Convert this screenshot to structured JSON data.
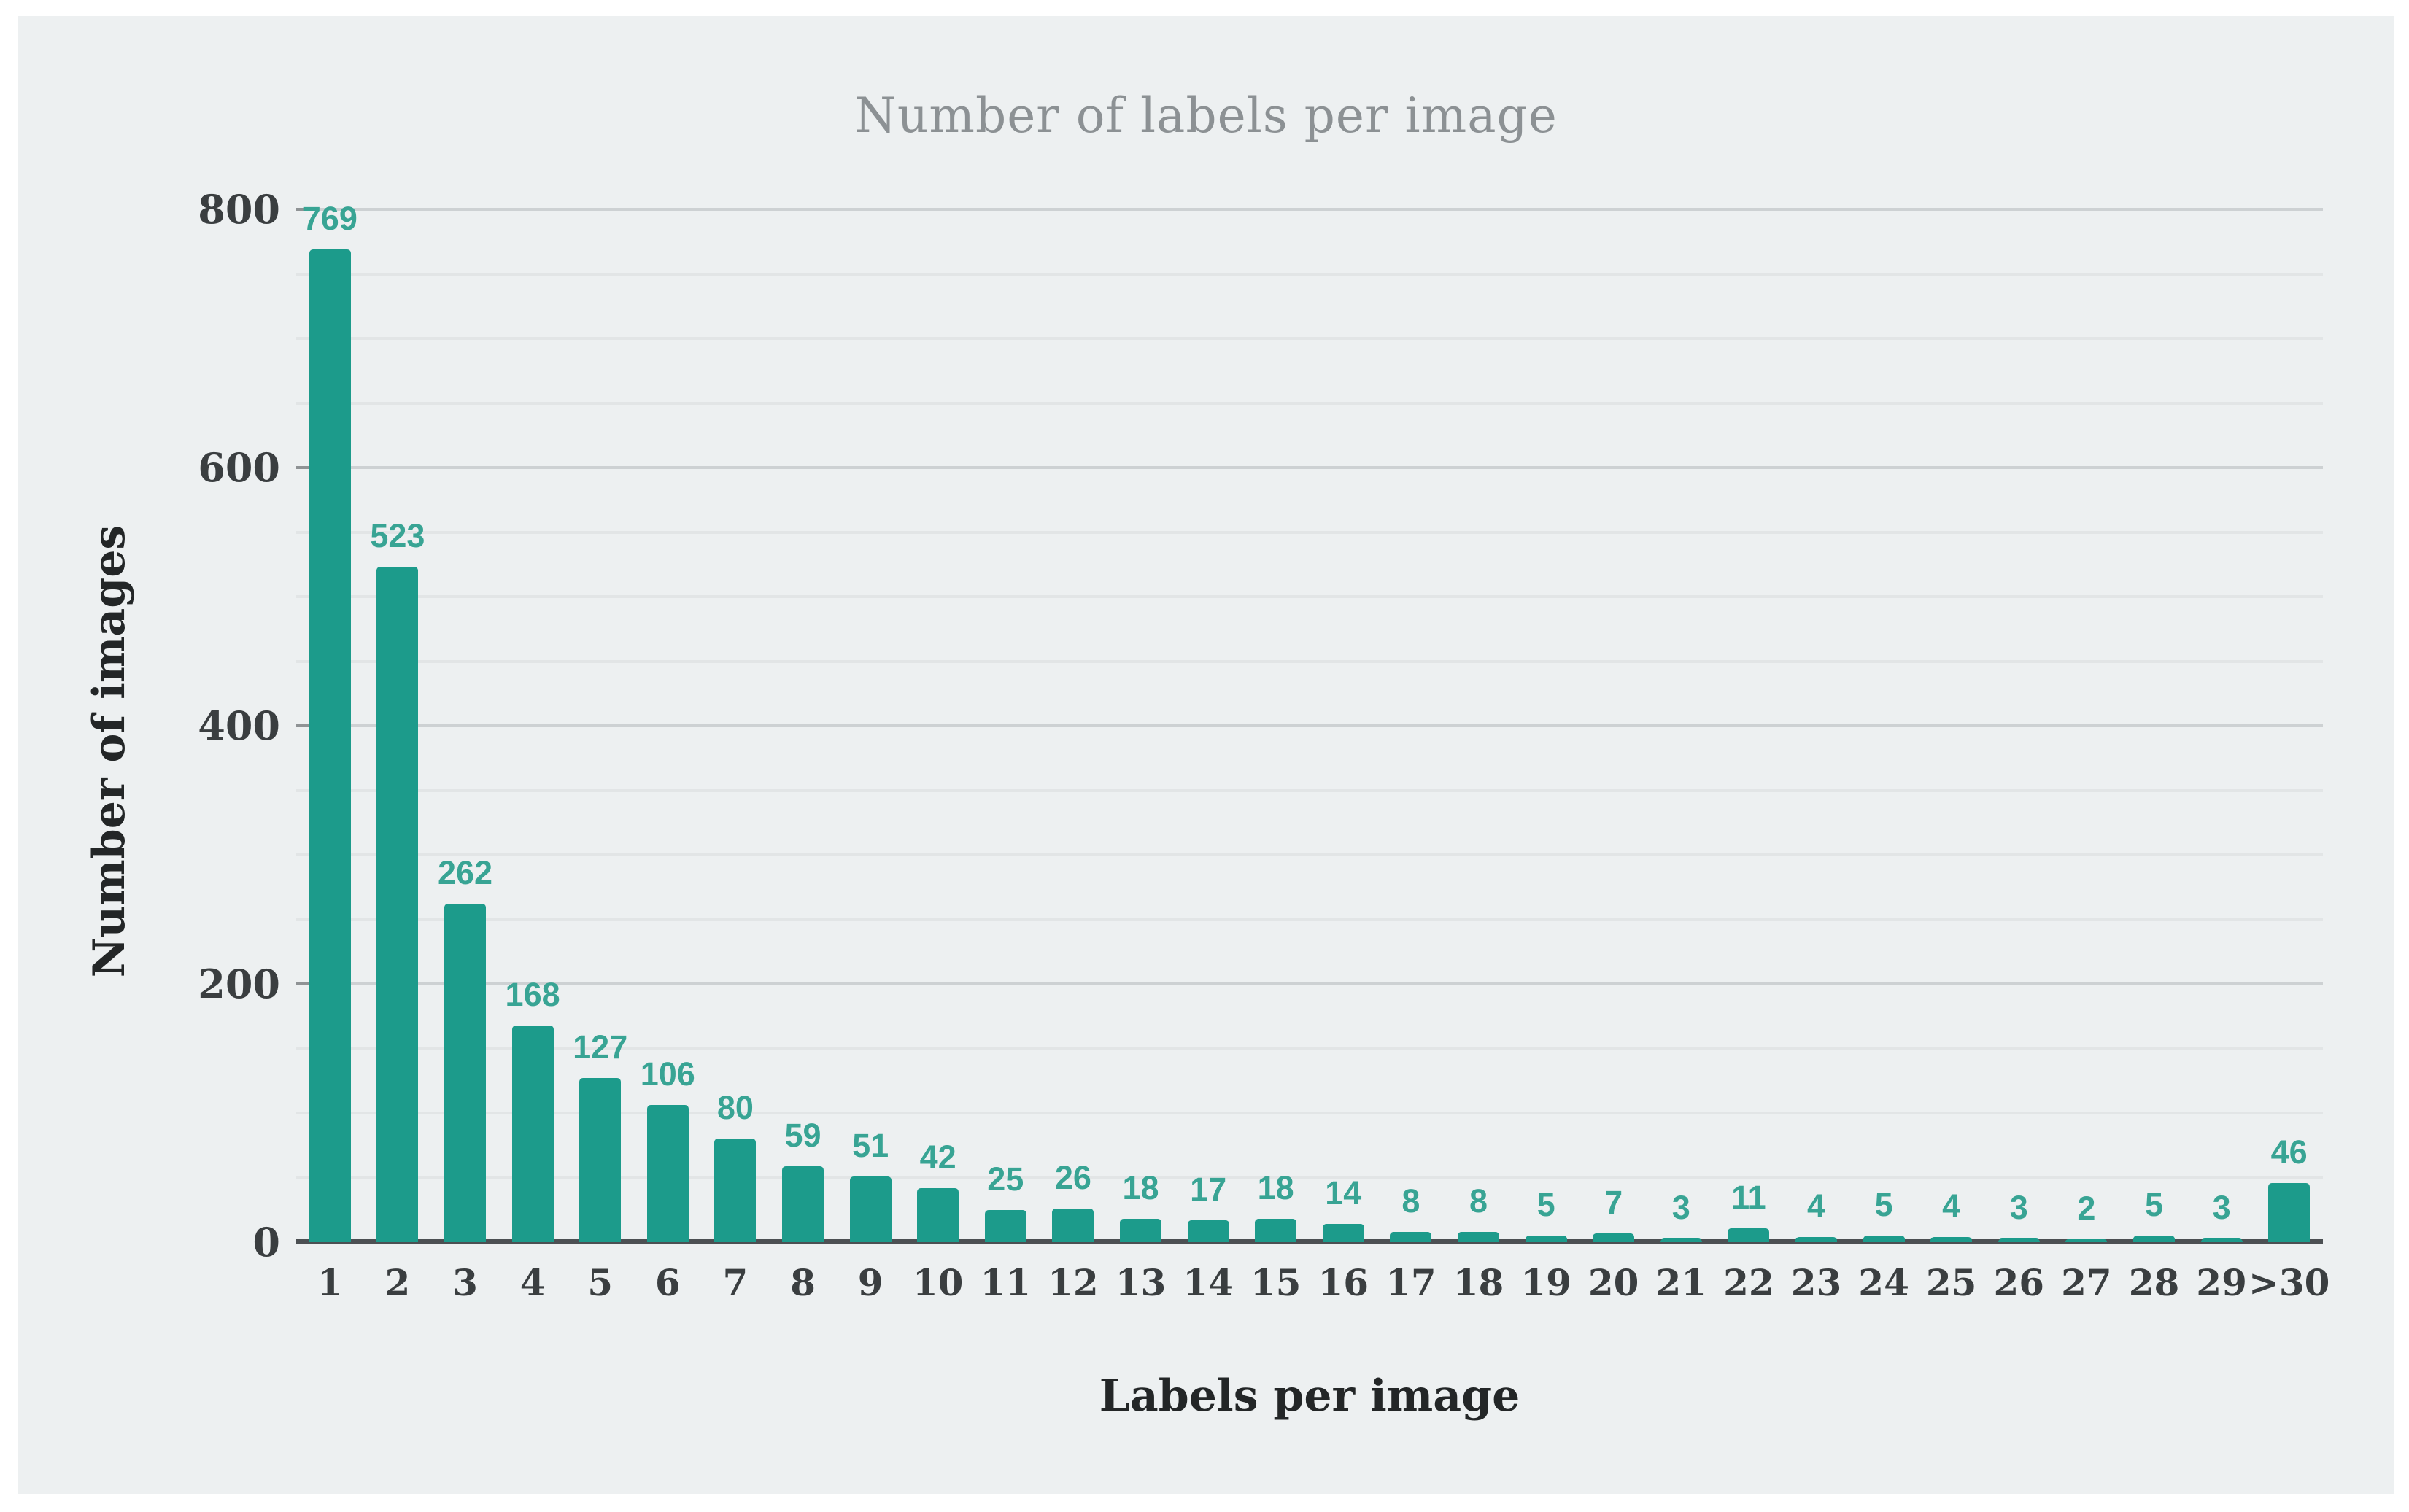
{
  "chart_data": {
    "type": "bar",
    "title": "Number of labels per image",
    "xlabel": "Labels per image",
    "ylabel": "Number of images",
    "categories": [
      "1",
      "2",
      "3",
      "4",
      "5",
      "6",
      "7",
      "8",
      "9",
      "10",
      "11",
      "12",
      "13",
      "14",
      "15",
      "16",
      "17",
      "18",
      "19",
      "20",
      "21",
      "22",
      "23",
      "24",
      "25",
      "26",
      "27",
      "28",
      "29",
      ">30"
    ],
    "values": [
      769,
      523,
      262,
      168,
      127,
      106,
      80,
      59,
      51,
      42,
      25,
      26,
      18,
      17,
      18,
      14,
      8,
      8,
      5,
      7,
      3,
      11,
      4,
      5,
      4,
      3,
      2,
      5,
      3,
      46
    ],
    "ylim": [
      0,
      800
    ],
    "yticks": [
      0,
      200,
      400,
      600,
      800
    ],
    "minor_grid_step": 50,
    "major_grid_step": 200,
    "grid": true,
    "legend": "none",
    "colors": {
      "bar": "#1c9b8b",
      "value_label": "#38a494",
      "title": "#8c9194",
      "tick_label": "#3a3e40",
      "axis_title": "#232627",
      "minor_grid": "#e2e5e6",
      "major_grid": "#cdd1d3",
      "baseline": "#4c5053",
      "panel_background": "#edf0f1",
      "page_background": "#ffffff"
    }
  }
}
